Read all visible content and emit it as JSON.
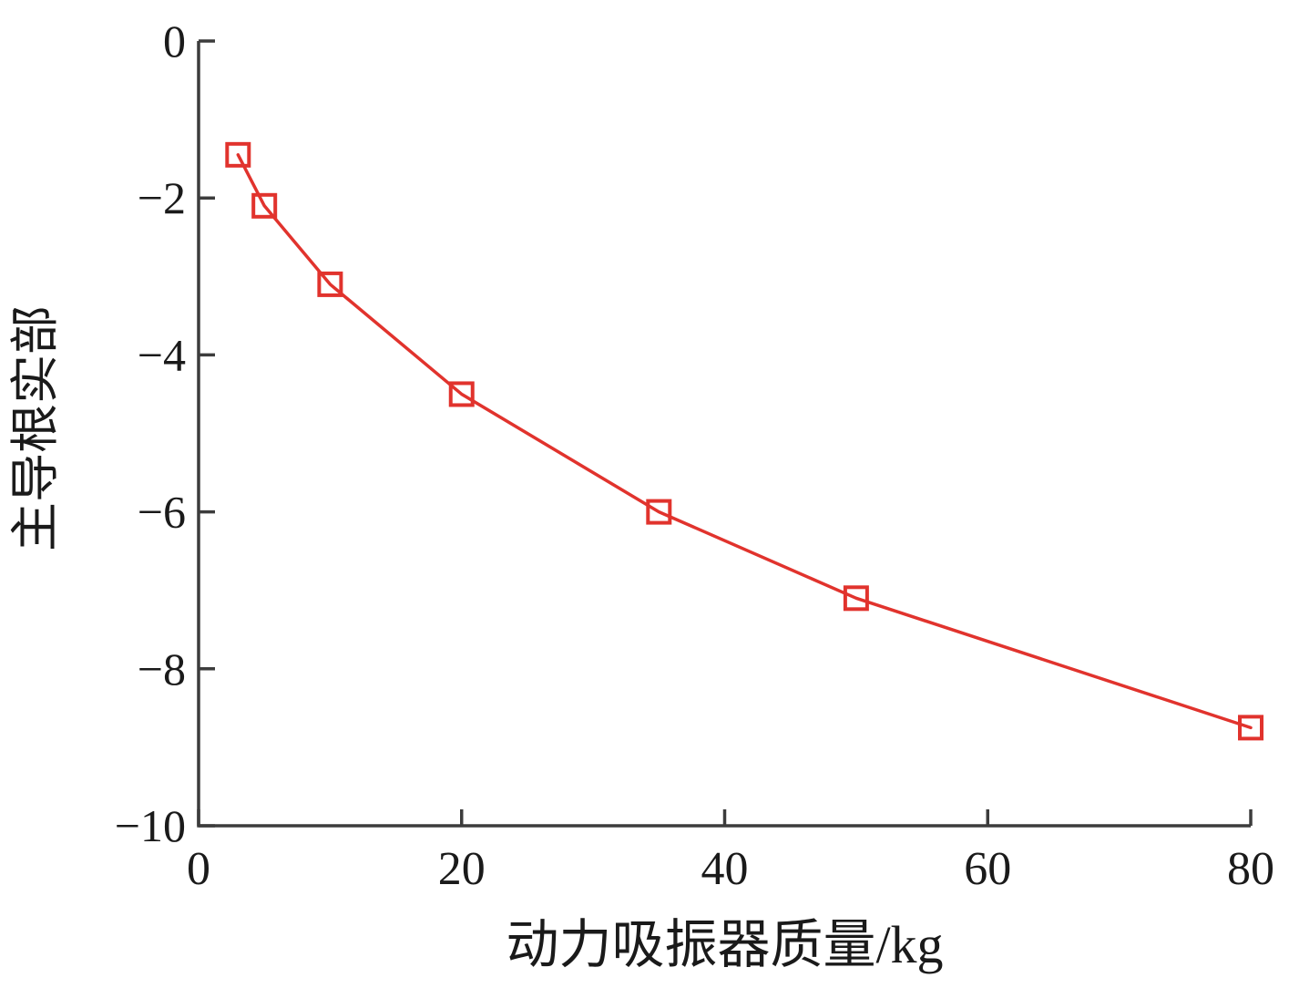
{
  "page": {
    "background": "#ffffff"
  },
  "chart_data": {
    "type": "line",
    "title": "",
    "xlabel": "动力吸振器质量/kg",
    "ylabel": "主导根实部",
    "xlim": [
      0,
      80
    ],
    "ylim": [
      -10,
      0
    ],
    "xticks": [
      0,
      20,
      40,
      60,
      80
    ],
    "xtick_labels": [
      "0",
      "20",
      "40",
      "60",
      "80"
    ],
    "yticks": [
      0,
      -2,
      -4,
      -6,
      -8,
      -10
    ],
    "ytick_labels": [
      "0",
      "−2",
      "−4",
      "−6",
      "−8",
      "−10"
    ],
    "grid": false,
    "legend": "none",
    "axis_color": "#3c3c3c",
    "text_color": "#1a1a1a",
    "series": [
      {
        "name": "主导根实部",
        "x": [
          3,
          5,
          10,
          20,
          35,
          50,
          80
        ],
        "y": [
          -1.45,
          -2.1,
          -3.1,
          -4.5,
          -6.0,
          -7.1,
          -8.75
        ],
        "line_color": "#e1332d",
        "marker": "open-square",
        "marker_color": "#e1332d"
      }
    ]
  }
}
